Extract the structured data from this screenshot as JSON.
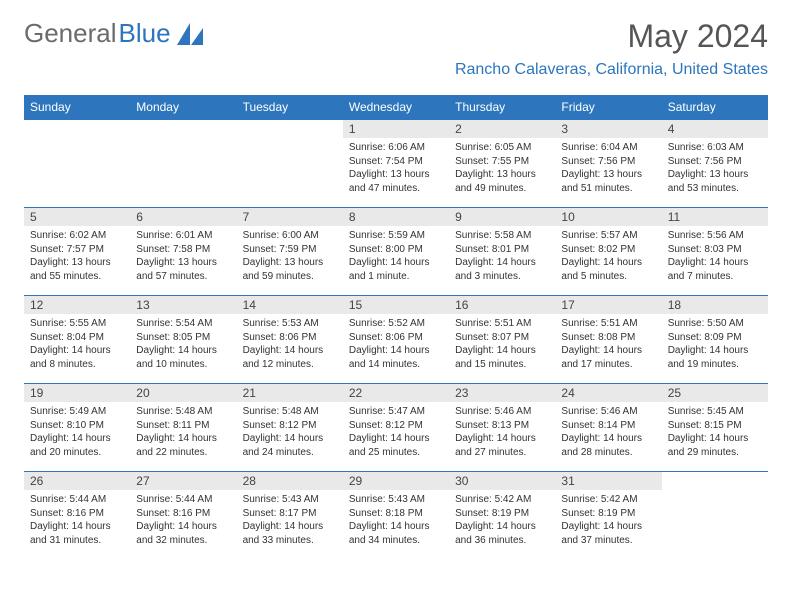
{
  "logo": {
    "word1": "General",
    "word2": "Blue"
  },
  "title": "May 2024",
  "location": "Rancho Calaveras, California, United States",
  "colors": {
    "brand_blue": "#2d76bd",
    "header_gray": "#e9e9e9",
    "text": "#333333",
    "title_gray": "#555555",
    "logo_gray": "#6b6b6b"
  },
  "weekdays": [
    "Sunday",
    "Monday",
    "Tuesday",
    "Wednesday",
    "Thursday",
    "Friday",
    "Saturday"
  ],
  "weeks": [
    [
      null,
      null,
      null,
      {
        "n": "1",
        "sr": "Sunrise: 6:06 AM",
        "ss": "Sunset: 7:54 PM",
        "dl": "Daylight: 13 hours and 47 minutes."
      },
      {
        "n": "2",
        "sr": "Sunrise: 6:05 AM",
        "ss": "Sunset: 7:55 PM",
        "dl": "Daylight: 13 hours and 49 minutes."
      },
      {
        "n": "3",
        "sr": "Sunrise: 6:04 AM",
        "ss": "Sunset: 7:56 PM",
        "dl": "Daylight: 13 hours and 51 minutes."
      },
      {
        "n": "4",
        "sr": "Sunrise: 6:03 AM",
        "ss": "Sunset: 7:56 PM",
        "dl": "Daylight: 13 hours and 53 minutes."
      }
    ],
    [
      {
        "n": "5",
        "sr": "Sunrise: 6:02 AM",
        "ss": "Sunset: 7:57 PM",
        "dl": "Daylight: 13 hours and 55 minutes."
      },
      {
        "n": "6",
        "sr": "Sunrise: 6:01 AM",
        "ss": "Sunset: 7:58 PM",
        "dl": "Daylight: 13 hours and 57 minutes."
      },
      {
        "n": "7",
        "sr": "Sunrise: 6:00 AM",
        "ss": "Sunset: 7:59 PM",
        "dl": "Daylight: 13 hours and 59 minutes."
      },
      {
        "n": "8",
        "sr": "Sunrise: 5:59 AM",
        "ss": "Sunset: 8:00 PM",
        "dl": "Daylight: 14 hours and 1 minute."
      },
      {
        "n": "9",
        "sr": "Sunrise: 5:58 AM",
        "ss": "Sunset: 8:01 PM",
        "dl": "Daylight: 14 hours and 3 minutes."
      },
      {
        "n": "10",
        "sr": "Sunrise: 5:57 AM",
        "ss": "Sunset: 8:02 PM",
        "dl": "Daylight: 14 hours and 5 minutes."
      },
      {
        "n": "11",
        "sr": "Sunrise: 5:56 AM",
        "ss": "Sunset: 8:03 PM",
        "dl": "Daylight: 14 hours and 7 minutes."
      }
    ],
    [
      {
        "n": "12",
        "sr": "Sunrise: 5:55 AM",
        "ss": "Sunset: 8:04 PM",
        "dl": "Daylight: 14 hours and 8 minutes."
      },
      {
        "n": "13",
        "sr": "Sunrise: 5:54 AM",
        "ss": "Sunset: 8:05 PM",
        "dl": "Daylight: 14 hours and 10 minutes."
      },
      {
        "n": "14",
        "sr": "Sunrise: 5:53 AM",
        "ss": "Sunset: 8:06 PM",
        "dl": "Daylight: 14 hours and 12 minutes."
      },
      {
        "n": "15",
        "sr": "Sunrise: 5:52 AM",
        "ss": "Sunset: 8:06 PM",
        "dl": "Daylight: 14 hours and 14 minutes."
      },
      {
        "n": "16",
        "sr": "Sunrise: 5:51 AM",
        "ss": "Sunset: 8:07 PM",
        "dl": "Daylight: 14 hours and 15 minutes."
      },
      {
        "n": "17",
        "sr": "Sunrise: 5:51 AM",
        "ss": "Sunset: 8:08 PM",
        "dl": "Daylight: 14 hours and 17 minutes."
      },
      {
        "n": "18",
        "sr": "Sunrise: 5:50 AM",
        "ss": "Sunset: 8:09 PM",
        "dl": "Daylight: 14 hours and 19 minutes."
      }
    ],
    [
      {
        "n": "19",
        "sr": "Sunrise: 5:49 AM",
        "ss": "Sunset: 8:10 PM",
        "dl": "Daylight: 14 hours and 20 minutes."
      },
      {
        "n": "20",
        "sr": "Sunrise: 5:48 AM",
        "ss": "Sunset: 8:11 PM",
        "dl": "Daylight: 14 hours and 22 minutes."
      },
      {
        "n": "21",
        "sr": "Sunrise: 5:48 AM",
        "ss": "Sunset: 8:12 PM",
        "dl": "Daylight: 14 hours and 24 minutes."
      },
      {
        "n": "22",
        "sr": "Sunrise: 5:47 AM",
        "ss": "Sunset: 8:12 PM",
        "dl": "Daylight: 14 hours and 25 minutes."
      },
      {
        "n": "23",
        "sr": "Sunrise: 5:46 AM",
        "ss": "Sunset: 8:13 PM",
        "dl": "Daylight: 14 hours and 27 minutes."
      },
      {
        "n": "24",
        "sr": "Sunrise: 5:46 AM",
        "ss": "Sunset: 8:14 PM",
        "dl": "Daylight: 14 hours and 28 minutes."
      },
      {
        "n": "25",
        "sr": "Sunrise: 5:45 AM",
        "ss": "Sunset: 8:15 PM",
        "dl": "Daylight: 14 hours and 29 minutes."
      }
    ],
    [
      {
        "n": "26",
        "sr": "Sunrise: 5:44 AM",
        "ss": "Sunset: 8:16 PM",
        "dl": "Daylight: 14 hours and 31 minutes."
      },
      {
        "n": "27",
        "sr": "Sunrise: 5:44 AM",
        "ss": "Sunset: 8:16 PM",
        "dl": "Daylight: 14 hours and 32 minutes."
      },
      {
        "n": "28",
        "sr": "Sunrise: 5:43 AM",
        "ss": "Sunset: 8:17 PM",
        "dl": "Daylight: 14 hours and 33 minutes."
      },
      {
        "n": "29",
        "sr": "Sunrise: 5:43 AM",
        "ss": "Sunset: 8:18 PM",
        "dl": "Daylight: 14 hours and 34 minutes."
      },
      {
        "n": "30",
        "sr": "Sunrise: 5:42 AM",
        "ss": "Sunset: 8:19 PM",
        "dl": "Daylight: 14 hours and 36 minutes."
      },
      {
        "n": "31",
        "sr": "Sunrise: 5:42 AM",
        "ss": "Sunset: 8:19 PM",
        "dl": "Daylight: 14 hours and 37 minutes."
      },
      null
    ]
  ]
}
